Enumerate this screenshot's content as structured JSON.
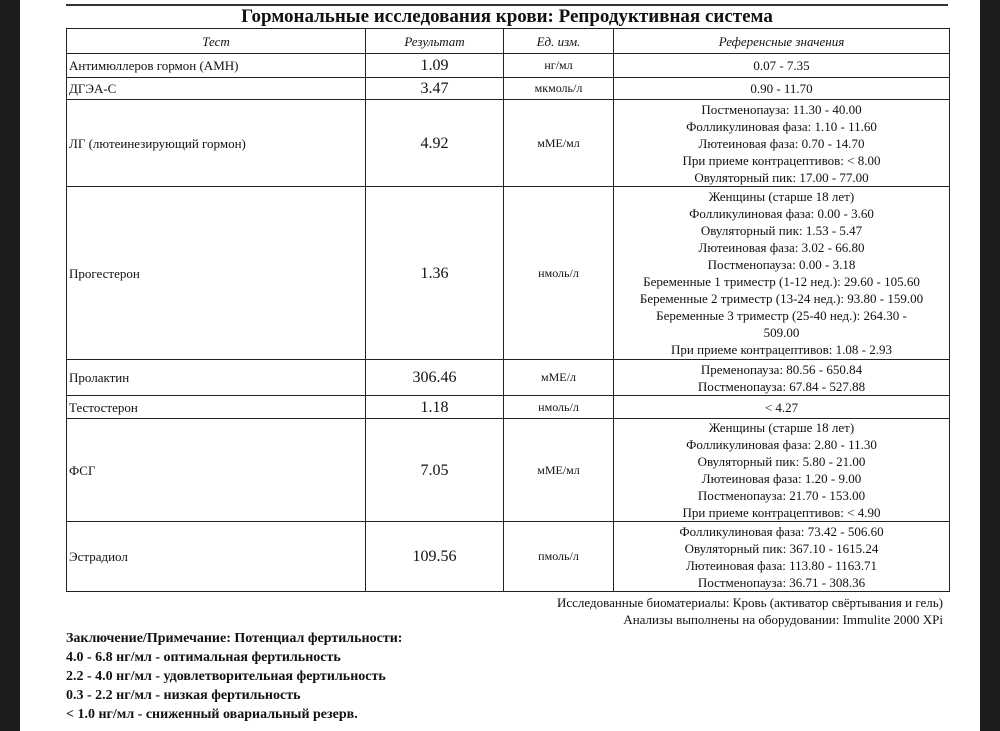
{
  "title": "Гормональные исследования крови: Репродуктивная система",
  "table": {
    "headers": [
      "Тест",
      "Результат",
      "Ед. изм.",
      "Референсные значения"
    ],
    "rows": [
      {
        "test": "Антимюллеров гормон (АМН)",
        "result": "1.09",
        "unit": "нг/мл",
        "ref": [
          "0.07 - 7.35"
        ]
      },
      {
        "test": "ДГЭА-С",
        "result": "3.47",
        "unit": "мкмоль/л",
        "ref": [
          "0.90 - 11.70"
        ]
      },
      {
        "test": "ЛГ (лютеинезирующий гормон)",
        "result": "4.92",
        "unit": "мМЕ/мл",
        "ref": [
          "Постменопауза: 11.30 - 40.00",
          "Фолликулиновая фаза: 1.10 - 11.60",
          "Лютеиновая фаза: 0.70 - 14.70",
          "При приеме контрацептивов: < 8.00",
          "Овуляторный пик: 17.00 - 77.00"
        ]
      },
      {
        "test": "Прогестерон",
        "result": "1.36",
        "unit": "нмоль/л",
        "ref": [
          "Женщины (старше 18 лет)",
          "Фолликулиновая фаза: 0.00 - 3.60",
          "Овуляторный пик: 1.53 - 5.47",
          "Лютеиновая фаза: 3.02 - 66.80",
          "Постменопауза: 0.00 - 3.18",
          "Беременные 1 триместр (1-12 нед.): 29.60 - 105.60",
          "Беременные 2 триместр (13-24 нед.): 93.80 - 159.00",
          "Беременные 3 триместр (25-40 нед.): 264.30 -",
          "509.00",
          "При приеме контрацептивов: 1.08 - 2.93"
        ]
      },
      {
        "test": "Пролактин",
        "result": "306.46",
        "unit": "мМЕ/л",
        "ref": [
          "Пременопауза: 80.56 - 650.84",
          "Постменопауза: 67.84 - 527.88"
        ]
      },
      {
        "test": "Тестостерон",
        "result": "1.18",
        "unit": "нмоль/л",
        "ref": [
          "< 4.27"
        ]
      },
      {
        "test": "ФСГ",
        "result": "7.05",
        "unit": "мМЕ/мл",
        "ref": [
          "Женщины (старше 18 лет)",
          "Фолликулиновая фаза: 2.80 - 11.30",
          "Овуляторный пик: 5.80 - 21.00",
          "Лютеиновая фаза: 1.20 - 9.00",
          "Постменопауза: 21.70 - 153.00",
          "При приеме контрацептивов: < 4.90"
        ]
      },
      {
        "test": "Эстрадиол",
        "result": "109.56",
        "unit": "пмоль/л",
        "ref": [
          "Фолликулиновая фаза: 73.42 - 506.60",
          "Овуляторный пик: 367.10 - 1615.24",
          "Лютеиновая фаза: 113.80 - 1163.71",
          "Постменопауза: 36.71 - 308.36"
        ]
      }
    ]
  },
  "notes": {
    "biomaterial": "Исследованные биоматериалы: Кровь (активатор свёртывания и гель)",
    "equipment": "Анализы выполнены на оборудовании: Immulite 2000 XPi"
  },
  "conclusion": [
    "Заключение/Примечание: Потенциал фертильности:",
    "4.0 - 6.8 нг/мл - оптимальная фертильность",
    "2.2 - 4.0 нг/мл - удовлетворительная фертильность",
    "0.3 - 2.2 нг/мл - низкая фертильность",
    "< 1.0 нг/мл - сниженный овариальный резерв."
  ]
}
